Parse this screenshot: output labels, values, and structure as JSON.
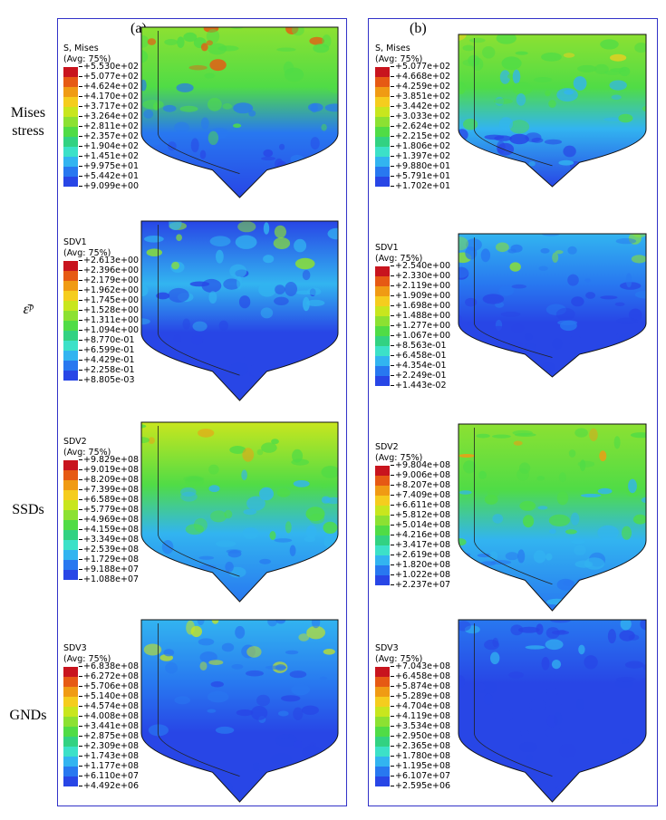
{
  "row_labels": [
    {
      "lines": [
        "Mises",
        "stress"
      ]
    },
    {
      "lines": [
        "ε̄ᵖ"
      ]
    },
    {
      "lines": [
        "SSDs"
      ]
    },
    {
      "lines": [
        "GNDs"
      ]
    }
  ],
  "colors": [
    "#c8141e",
    "#e65a14",
    "#f09b14",
    "#f5cd1e",
    "#c8e61e",
    "#8ce132",
    "#50dc46",
    "#32d282",
    "#3ce1c8",
    "#32b4f0",
    "#2878f0",
    "#2846e6",
    "#3214e1"
  ],
  "panels": [
    {
      "tag": "(a)",
      "legends": [
        {
          "var": "S, Mises",
          "avg": "(Avg: 75%)",
          "values": [
            "+5.530e+02",
            "+5.077e+02",
            "+4.624e+02",
            "+4.170e+02",
            "+3.717e+02",
            "+3.264e+02",
            "+2.811e+02",
            "+2.357e+02",
            "+1.904e+02",
            "+1.451e+02",
            "+9.975e+01",
            "+5.442e+01",
            "+9.099e+00"
          ]
        },
        {
          "var": "SDV1",
          "avg": "(Avg: 75%)",
          "values": [
            "+2.613e+00",
            "+2.396e+00",
            "+2.179e+00",
            "+1.962e+00",
            "+1.745e+00",
            "+1.528e+00",
            "+1.311e+00",
            "+1.094e+00",
            "+8.770e-01",
            "+6.599e-01",
            "+4.429e-01",
            "+2.258e-01",
            "+8.805e-03"
          ]
        },
        {
          "var": "SDV2",
          "avg": "(Avg: 75%)",
          "values": [
            "+9.829e+08",
            "+9.019e+08",
            "+8.209e+08",
            "+7.399e+08",
            "+6.589e+08",
            "+5.779e+08",
            "+4.969e+08",
            "+4.159e+08",
            "+3.349e+08",
            "+2.539e+08",
            "+1.729e+08",
            "+9.188e+07",
            "+1.088e+07"
          ]
        },
        {
          "var": "SDV3",
          "avg": "(Avg: 75%)",
          "values": [
            "+6.838e+08",
            "+6.272e+08",
            "+5.706e+08",
            "+5.140e+08",
            "+4.574e+08",
            "+4.008e+08",
            "+3.441e+08",
            "+2.875e+08",
            "+2.309e+08",
            "+1.743e+08",
            "+1.177e+08",
            "+6.110e+07",
            "+4.492e+06"
          ]
        }
      ]
    },
    {
      "tag": "(b)",
      "legends": [
        {
          "var": "S, Mises",
          "avg": "(Avg: 75%)",
          "values": [
            "+5.077e+02",
            "+4.668e+02",
            "+4.259e+02",
            "+3.851e+02",
            "+3.442e+02",
            "+3.033e+02",
            "+2.624e+02",
            "+2.215e+02",
            "+1.806e+02",
            "+1.397e+02",
            "+9.880e+01",
            "+5.791e+01",
            "+1.702e+01"
          ]
        },
        {
          "var": "SDV1",
          "avg": "(Avg: 75%)",
          "values": [
            "+2.540e+00",
            "+2.330e+00",
            "+2.119e+00",
            "+1.909e+00",
            "+1.698e+00",
            "+1.488e+00",
            "+1.277e+00",
            "+1.067e+00",
            "+8.563e-01",
            "+6.458e-01",
            "+4.354e-01",
            "+2.249e-01",
            "+1.443e-02"
          ]
        },
        {
          "var": "SDV2",
          "avg": "(Avg: 75%)",
          "values": [
            "+9.804e+08",
            "+9.006e+08",
            "+8.207e+08",
            "+7.409e+08",
            "+6.611e+08",
            "+5.812e+08",
            "+5.014e+08",
            "+4.216e+08",
            "+3.417e+08",
            "+2.619e+08",
            "+1.820e+08",
            "+1.022e+08",
            "+2.237e+07"
          ]
        },
        {
          "var": "SDV3",
          "avg": "(Avg: 75%)",
          "values": [
            "+7.043e+08",
            "+6.458e+08",
            "+5.874e+08",
            "+5.289e+08",
            "+4.704e+08",
            "+4.119e+08",
            "+3.534e+08",
            "+2.950e+08",
            "+2.365e+08",
            "+1.780e+08",
            "+1.195e+08",
            "+6.107e+07",
            "+2.595e+06"
          ]
        }
      ]
    }
  ],
  "contour_maps": [
    {
      "field": "Mises stress",
      "panel": "(a)",
      "top": "#8ce132",
      "upper": "#50dc46",
      "lower": "#2878f0",
      "bottom": "#2846e6",
      "hot": "#e65a14"
    },
    {
      "field": "SDV1",
      "panel": "(a)",
      "top": "#2846e6",
      "upper": "#32b4f0",
      "lower": "#2846e6",
      "bottom": "#2846e6",
      "hot": "#8ce132"
    },
    {
      "field": "SDV2",
      "panel": "(a)",
      "top": "#c8e61e",
      "upper": "#50dc46",
      "lower": "#32b4f0",
      "bottom": "#2878f0",
      "hot": "#f09b14"
    },
    {
      "field": "SDV3",
      "panel": "(a)",
      "top": "#32b4f0",
      "upper": "#2878f0",
      "lower": "#2846e6",
      "bottom": "#2846e6",
      "hot": "#c8e61e"
    },
    {
      "field": "Mises stress",
      "panel": "(b)",
      "top": "#8ce132",
      "upper": "#50dc46",
      "lower": "#32b4f0",
      "bottom": "#2846e6",
      "hot": "#f5cd1e"
    },
    {
      "field": "SDV1",
      "panel": "(b)",
      "top": "#32b4f0",
      "upper": "#2878f0",
      "lower": "#2846e6",
      "bottom": "#2846e6",
      "hot": "#8ce132"
    },
    {
      "field": "SDV2",
      "panel": "(b)",
      "top": "#8ce132",
      "upper": "#50dc46",
      "lower": "#32b4f0",
      "bottom": "#2878f0",
      "hot": "#f09b14"
    },
    {
      "field": "SDV3",
      "panel": "(b)",
      "top": "#2878f0",
      "upper": "#2846e6",
      "lower": "#2846e6",
      "bottom": "#2846e6",
      "hot": "#32b4f0"
    }
  ]
}
